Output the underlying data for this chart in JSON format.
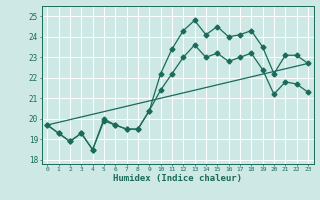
{
  "title": "",
  "xlabel": "Humidex (Indice chaleur)",
  "bg_color": "#cde8e5",
  "grid_color": "#ffffff",
  "line_color": "#1a6b5a",
  "xlim": [
    -0.5,
    23.5
  ],
  "ylim": [
    17.8,
    25.5
  ],
  "xticks": [
    0,
    1,
    2,
    3,
    4,
    5,
    6,
    7,
    8,
    9,
    10,
    11,
    12,
    13,
    14,
    15,
    16,
    17,
    18,
    19,
    20,
    21,
    22,
    23
  ],
  "yticks": [
    18,
    19,
    20,
    21,
    22,
    23,
    24,
    25
  ],
  "line1_x": [
    0,
    1,
    2,
    3,
    4,
    5,
    6,
    7,
    8,
    9,
    10,
    11,
    12,
    13,
    14,
    15,
    16,
    17,
    18,
    19,
    20,
    21,
    22,
    23
  ],
  "line1_y": [
    19.7,
    19.3,
    18.9,
    19.3,
    18.5,
    19.9,
    19.7,
    19.5,
    19.5,
    20.4,
    22.2,
    23.4,
    24.3,
    24.8,
    24.1,
    24.5,
    24.0,
    24.1,
    24.3,
    23.5,
    22.2,
    23.1,
    23.1,
    22.7
  ],
  "line2_x": [
    0,
    1,
    2,
    3,
    4,
    5,
    6,
    7,
    8,
    9,
    10,
    11,
    12,
    13,
    14,
    15,
    16,
    17,
    18,
    19,
    20,
    21,
    22,
    23
  ],
  "line2_y": [
    19.7,
    19.3,
    18.9,
    19.3,
    18.5,
    20.0,
    19.7,
    19.5,
    19.5,
    20.4,
    21.4,
    22.2,
    23.0,
    23.6,
    23.0,
    23.2,
    22.8,
    23.0,
    23.2,
    22.4,
    21.2,
    21.8,
    21.7,
    21.3
  ],
  "line3_x": [
    0,
    23
  ],
  "line3_y": [
    19.7,
    22.7
  ],
  "markersize": 2.5,
  "linewidth": 0.9
}
